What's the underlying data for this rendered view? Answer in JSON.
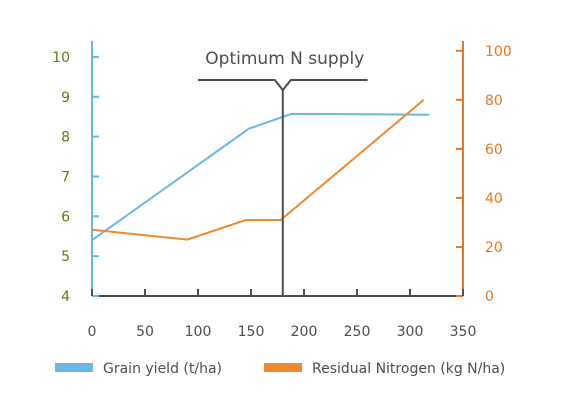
{
  "chart_data": {
    "type": "line",
    "title": "",
    "xlabel": "",
    "ylabel": "",
    "y2label": "",
    "x_ticks": [
      0,
      50,
      100,
      150,
      200,
      250,
      300,
      350
    ],
    "y_left_ticks": [
      4,
      5,
      6,
      7,
      8,
      9,
      10
    ],
    "y_right_ticks": [
      0,
      20,
      40,
      60,
      80,
      100
    ],
    "xlim": [
      0,
      350
    ],
    "ylim_left": [
      4,
      10.4
    ],
    "ylim_right": [
      0,
      104
    ],
    "grid": false,
    "legend_position": "bottom",
    "series": [
      {
        "name": "Grain yield (t/ha)",
        "axis": "left",
        "color": "#6ab7e6",
        "x": [
          0,
          148,
          188,
          318
        ],
        "y": [
          5.4,
          8.2,
          8.57,
          8.55
        ]
      },
      {
        "name": "Residual Nitrogen (kg N/ha)",
        "axis": "right",
        "color": "#f08a2e",
        "x": [
          0,
          90,
          145,
          178,
          313
        ],
        "y": [
          27,
          23,
          31,
          31,
          80
        ]
      }
    ],
    "annotations": [
      {
        "text": "Optimum N supply",
        "x": 180
      }
    ],
    "colors": {
      "left_axis": "#5a7d1a",
      "right_axis": "#e87722",
      "bottom_axis": "#4d4d4d",
      "annotation": "#4d4d4d"
    }
  }
}
